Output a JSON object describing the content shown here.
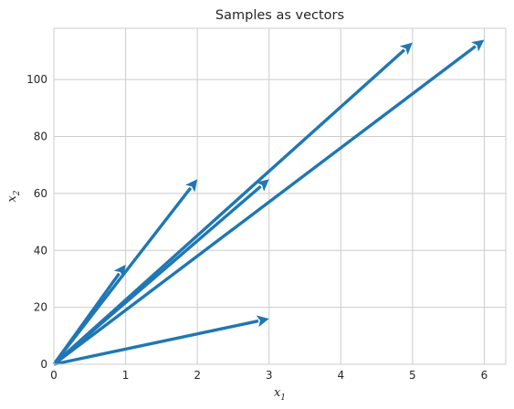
{
  "chart_data": {
    "type": "quiver",
    "title": "Samples as vectors",
    "xlabel": {
      "base": "x",
      "sub": "1"
    },
    "ylabel": {
      "base": "x",
      "sub": "2"
    },
    "xlim": [
      0,
      6.3
    ],
    "ylim": [
      0,
      118
    ],
    "xticks": [
      0,
      1,
      2,
      3,
      4,
      5,
      6
    ],
    "yticks": [
      0,
      20,
      40,
      60,
      80,
      100
    ],
    "grid": true,
    "color": "#1f77b4",
    "vectors": [
      {
        "x": 1,
        "y": 35
      },
      {
        "x": 2,
        "y": 65
      },
      {
        "x": 3,
        "y": 65
      },
      {
        "x": 3,
        "y": 16
      },
      {
        "x": 5,
        "y": 113
      },
      {
        "x": 6,
        "y": 114
      }
    ]
  }
}
